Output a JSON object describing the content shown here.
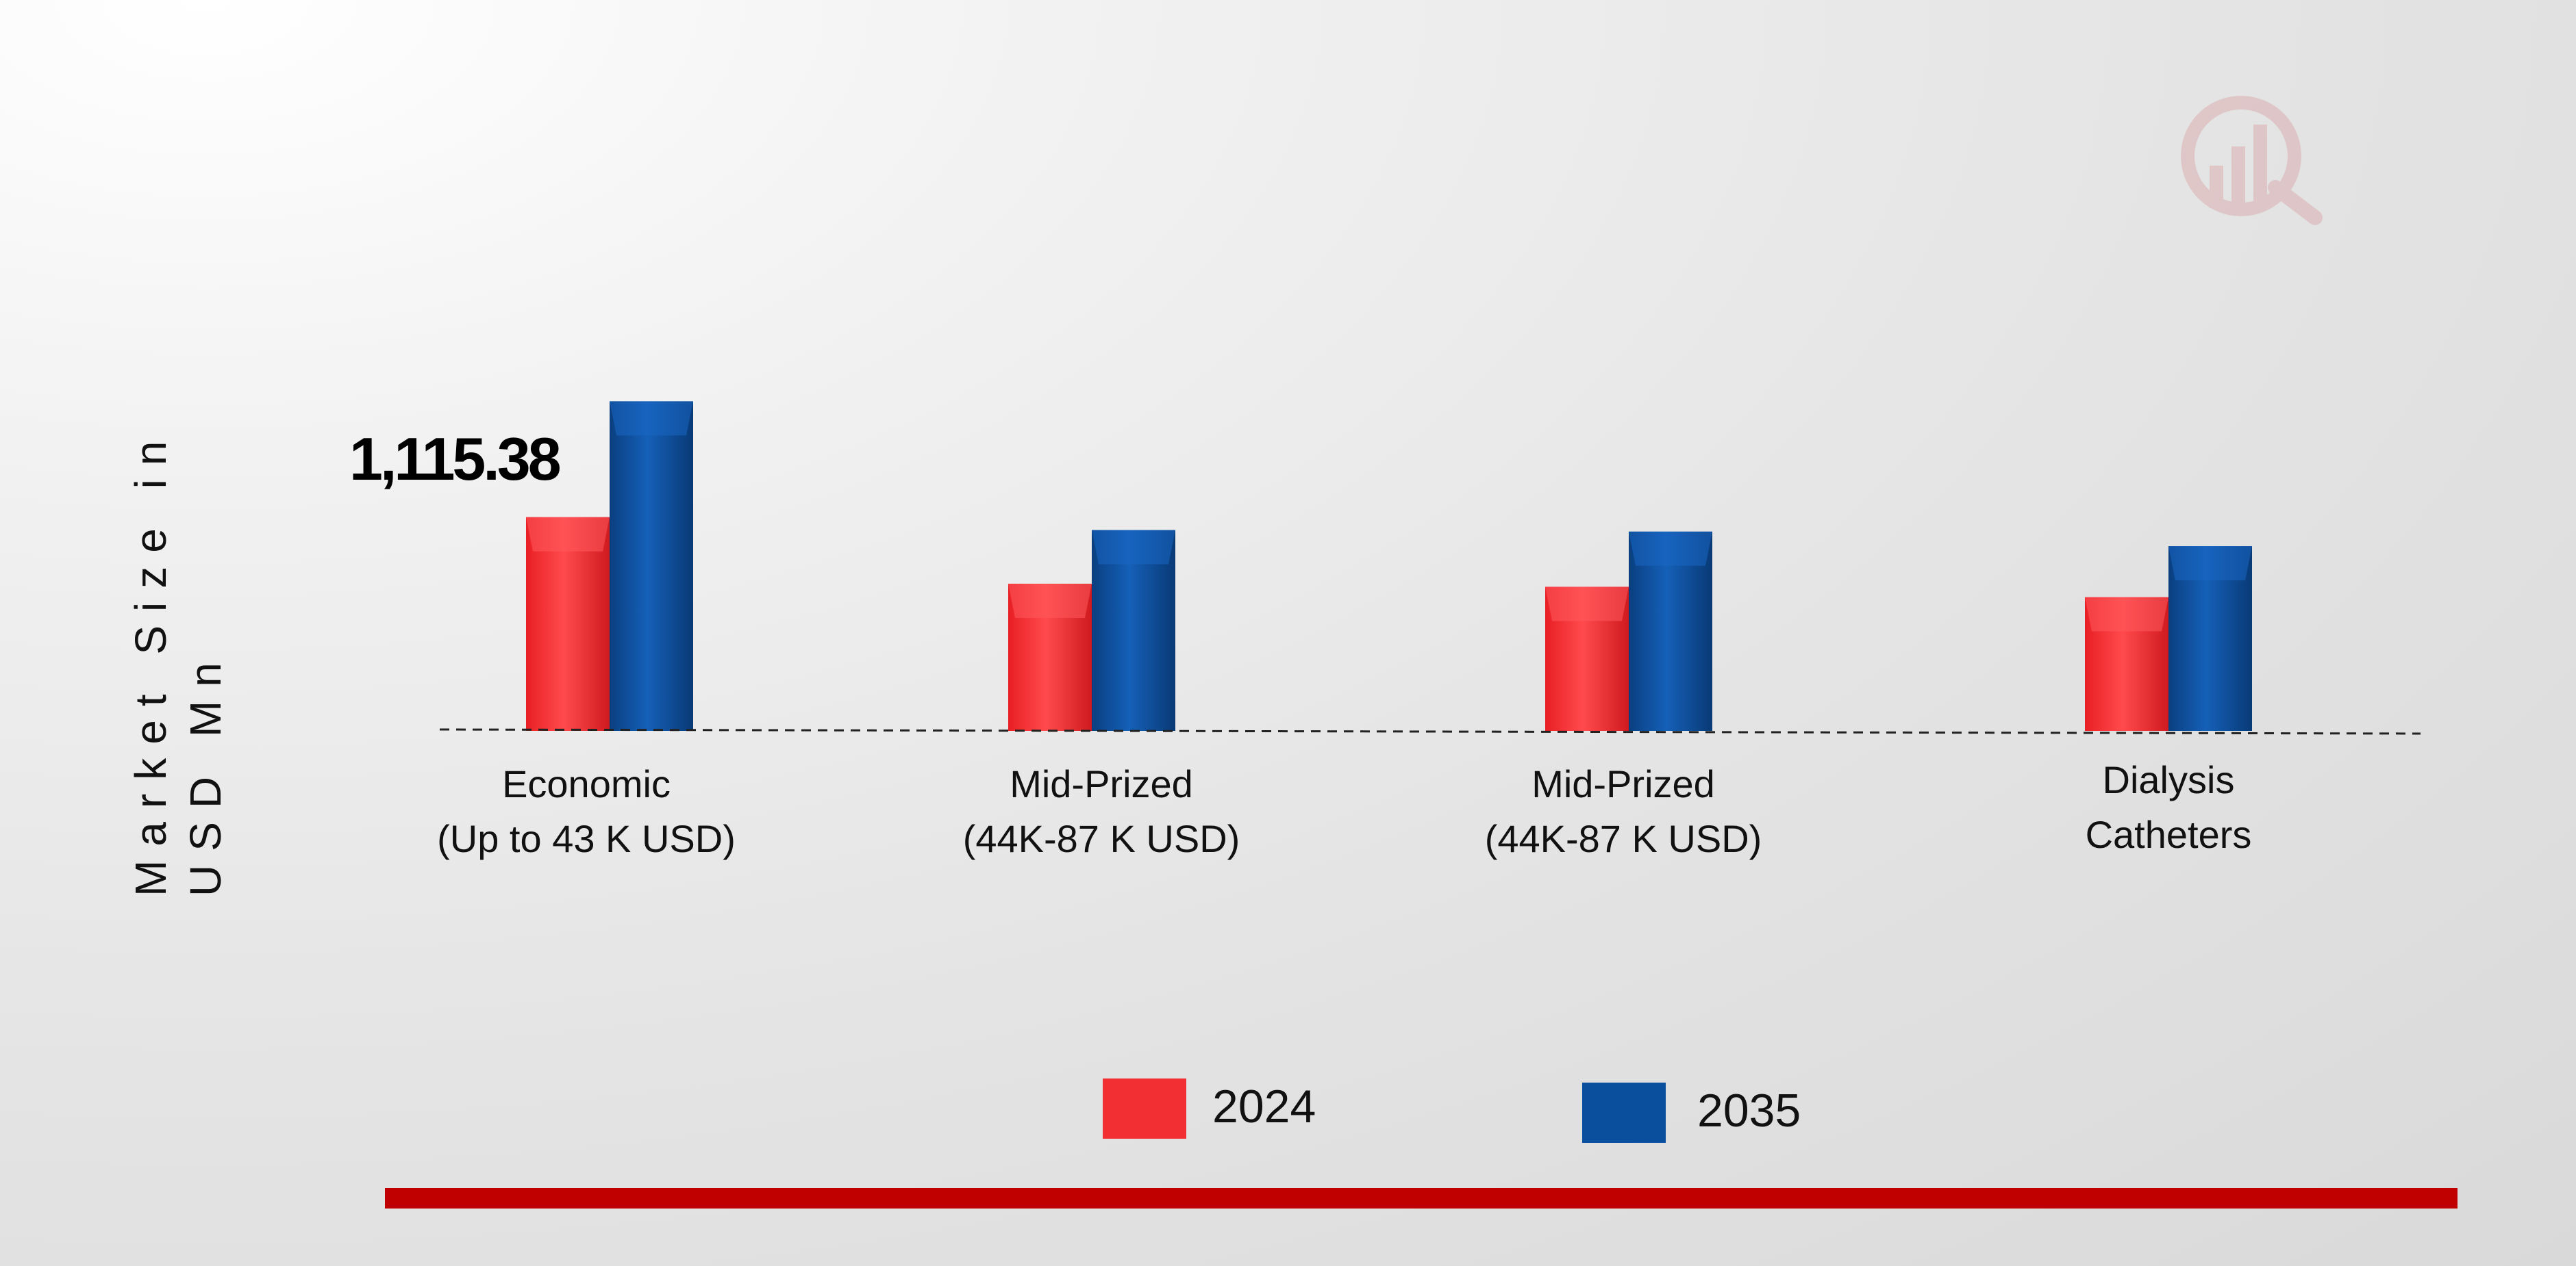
{
  "chart_data": {
    "type": "bar",
    "title": "",
    "xlabel": "",
    "ylabel": "Market Size in USD Mn",
    "categories": [
      [
        "Economic",
        "(Up to 43 K USD)"
      ],
      [
        "Mid-Prized",
        "(44K-87 K USD)"
      ],
      [
        "Mid-Prized",
        "(44K-87 K USD)"
      ],
      [
        "Dialysis",
        "Catheters"
      ]
    ],
    "series": [
      {
        "name": "2024",
        "color": "#f23034",
        "values": [
          1115.38,
          768,
          752,
          698
        ]
      },
      {
        "name": "2035",
        "color": "#0a4f9e",
        "values": [
          1720,
          1048,
          1040,
          964
        ]
      }
    ],
    "data_labels": [
      {
        "series": 0,
        "index": 0,
        "text": "1,115.38"
      }
    ],
    "ylim": [
      0,
      2000
    ],
    "grid": false,
    "legend_position": "bottom-center"
  }
}
